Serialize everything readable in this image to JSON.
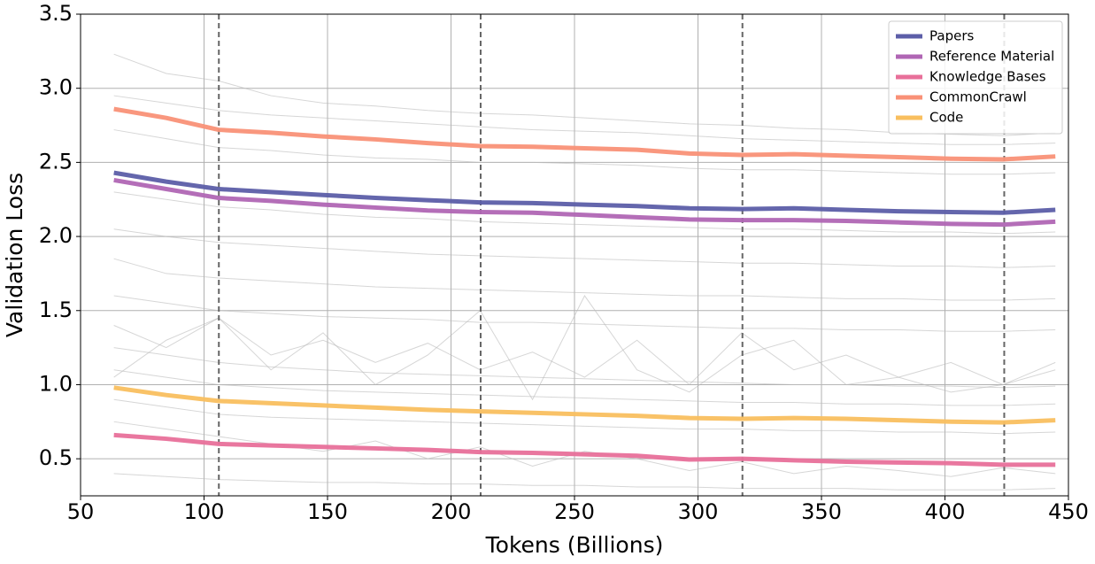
{
  "chart_data": {
    "type": "line",
    "xlabel": "Tokens (Billions)",
    "ylabel": "Validation Loss",
    "x": [
      63.5,
      84.7,
      105.9,
      127.1,
      148.2,
      169.4,
      190.6,
      211.8,
      233,
      254.1,
      275.3,
      296.5,
      317.7,
      338.8,
      360,
      381.2,
      402.4,
      423.5,
      444.7
    ],
    "xlim": [
      50,
      450
    ],
    "xticks": [
      50,
      100,
      150,
      200,
      250,
      300,
      350,
      400,
      450
    ],
    "ylim": [
      0.25,
      3.5
    ],
    "yticks": [
      {
        "value": 0.5,
        "label": "0.5"
      },
      {
        "value": 1.0,
        "label": "1.0"
      },
      1.5,
      {
        "value": 2.0,
        "label": "2.0"
      },
      2.5,
      {
        "value": 3.0,
        "label": "3.0"
      },
      3.5
    ],
    "grid": true,
    "vlines": [
      106,
      212,
      318,
      424
    ],
    "vline_color": "#666666",
    "legend": "upper-right",
    "series": [
      {
        "name": "Papers",
        "color": "#5c5ea8",
        "values": [
          2.43,
          2.37,
          2.32,
          2.3,
          2.28,
          2.26,
          2.245,
          2.23,
          2.225,
          2.215,
          2.205,
          2.19,
          2.185,
          2.19,
          2.18,
          2.17,
          2.165,
          2.16,
          2.18
        ]
      },
      {
        "name": "Reference Material",
        "color": "#b066b4",
        "values": [
          2.38,
          2.32,
          2.26,
          2.24,
          2.215,
          2.195,
          2.175,
          2.165,
          2.16,
          2.145,
          2.13,
          2.115,
          2.11,
          2.11,
          2.105,
          2.095,
          2.085,
          2.08,
          2.1
        ]
      },
      {
        "name": "Knowledge Bases",
        "color": "#e8709a",
        "values": [
          0.66,
          0.635,
          0.6,
          0.59,
          0.58,
          0.57,
          0.56,
          0.545,
          0.54,
          0.53,
          0.52,
          0.495,
          0.5,
          0.49,
          0.48,
          0.475,
          0.47,
          0.46,
          0.46
        ]
      },
      {
        "name": "CommonCrawl",
        "color": "#f99177",
        "values": [
          2.86,
          2.8,
          2.72,
          2.7,
          2.675,
          2.655,
          2.63,
          2.61,
          2.605,
          2.595,
          2.585,
          2.56,
          2.55,
          2.555,
          2.545,
          2.535,
          2.525,
          2.52,
          2.54
        ]
      },
      {
        "name": "Code",
        "color": "#f9bf5f",
        "values": [
          0.98,
          0.93,
          0.89,
          0.875,
          0.86,
          0.845,
          0.83,
          0.82,
          0.81,
          0.8,
          0.79,
          0.775,
          0.77,
          0.775,
          0.77,
          0.76,
          0.75,
          0.745,
          0.76
        ]
      }
    ],
    "background": {
      "color": "#bbbbbb",
      "lines": [
        [
          3.23,
          3.1,
          3.05,
          2.95,
          2.9,
          2.88,
          2.85,
          2.83,
          2.82,
          2.8,
          2.78,
          2.76,
          2.75,
          2.73,
          2.72,
          2.7,
          2.69,
          2.68,
          2.7
        ],
        [
          2.95,
          2.9,
          2.85,
          2.82,
          2.8,
          2.78,
          2.76,
          2.74,
          2.72,
          2.71,
          2.7,
          2.68,
          2.66,
          2.65,
          2.64,
          2.63,
          2.62,
          2.62,
          2.63
        ],
        [
          2.72,
          2.66,
          2.6,
          2.58,
          2.55,
          2.53,
          2.52,
          2.5,
          2.5,
          2.49,
          2.48,
          2.46,
          2.45,
          2.45,
          2.44,
          2.43,
          2.42,
          2.42,
          2.43
        ],
        [
          2.3,
          2.25,
          2.2,
          2.18,
          2.15,
          2.13,
          2.12,
          2.1,
          2.09,
          2.08,
          2.07,
          2.06,
          2.05,
          2.05,
          2.04,
          2.03,
          2.03,
          2.02,
          2.03
        ],
        [
          2.05,
          2.0,
          1.96,
          1.94,
          1.92,
          1.9,
          1.88,
          1.87,
          1.86,
          1.85,
          1.84,
          1.83,
          1.82,
          1.82,
          1.81,
          1.8,
          1.8,
          1.79,
          1.8
        ],
        [
          1.85,
          1.75,
          1.72,
          1.7,
          1.68,
          1.66,
          1.65,
          1.64,
          1.63,
          1.62,
          1.61,
          1.6,
          1.6,
          1.59,
          1.58,
          1.58,
          1.57,
          1.57,
          1.58
        ],
        [
          1.6,
          1.55,
          1.5,
          1.48,
          1.46,
          1.45,
          1.44,
          1.42,
          1.42,
          1.41,
          1.4,
          1.39,
          1.38,
          1.38,
          1.37,
          1.37,
          1.36,
          1.36,
          1.37
        ],
        [
          1.4,
          1.25,
          1.45,
          1.2,
          1.3,
          1.15,
          1.28,
          1.1,
          1.22,
          1.05,
          1.3,
          1.0,
          1.35,
          1.1,
          1.2,
          1.05,
          1.15,
          1.0,
          1.1
        ],
        [
          1.25,
          1.2,
          1.15,
          1.12,
          1.1,
          1.08,
          1.07,
          1.06,
          1.05,
          1.04,
          1.03,
          1.02,
          1.01,
          1.0,
          1.0,
          0.99,
          0.99,
          0.98,
          0.99
        ],
        [
          1.05,
          1.3,
          1.45,
          1.1,
          1.35,
          1.0,
          1.2,
          1.5,
          0.9,
          1.6,
          1.1,
          0.95,
          1.2,
          1.3,
          1.0,
          1.05,
          0.95,
          1.0,
          1.15
        ],
        [
          1.1,
          1.05,
          1.0,
          0.98,
          0.96,
          0.95,
          0.94,
          0.93,
          0.92,
          0.91,
          0.9,
          0.89,
          0.88,
          0.88,
          0.87,
          0.87,
          0.86,
          0.86,
          0.87
        ],
        [
          0.9,
          0.85,
          0.8,
          0.78,
          0.77,
          0.76,
          0.75,
          0.74,
          0.73,
          0.72,
          0.71,
          0.7,
          0.7,
          0.69,
          0.69,
          0.68,
          0.68,
          0.67,
          0.68
        ],
        [
          0.75,
          0.7,
          0.65,
          0.6,
          0.55,
          0.62,
          0.5,
          0.58,
          0.45,
          0.55,
          0.5,
          0.42,
          0.48,
          0.4,
          0.45,
          0.42,
          0.38,
          0.44,
          0.4
        ],
        [
          0.4,
          0.38,
          0.36,
          0.35,
          0.34,
          0.34,
          0.33,
          0.33,
          0.32,
          0.32,
          0.31,
          0.31,
          0.3,
          0.3,
          0.3,
          0.29,
          0.29,
          0.29,
          0.3
        ]
      ]
    }
  }
}
